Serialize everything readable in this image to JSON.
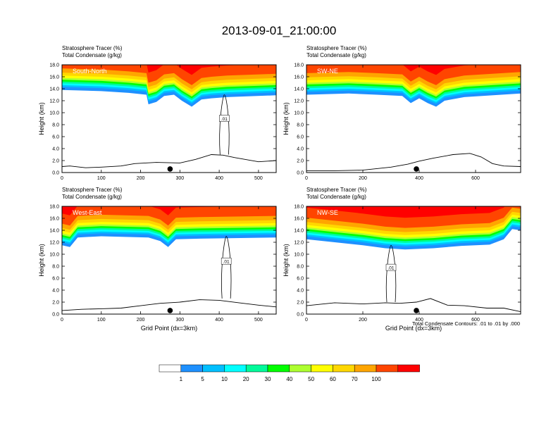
{
  "figure_title": "2013-09-01_21:00:00",
  "contour_info": "Total Condensate Contours: .01 to .01 by .000",
  "chart_data": [
    {
      "type": "heatmap",
      "panel_label": "South-North",
      "left_titles": [
        "Stratosphere Tracer   (%)",
        "Total Condensate   (g/kg)"
      ],
      "ylabel": "Height (km)",
      "xlabel": "",
      "xlim": [
        0,
        545
      ],
      "ylim": [
        0,
        18
      ],
      "x_ticks": [
        0,
        100,
        200,
        300,
        400,
        500
      ],
      "y_ticks": [
        "0.0",
        "2.0",
        "4.0",
        "6.0",
        "8.0",
        "10.0",
        "12.0",
        "14.0",
        "16.0",
        "18.0"
      ],
      "marker_x": 275,
      "contour_label": ".01",
      "tracer_bottom": [
        [
          0,
          13.8
        ],
        [
          100,
          13.6
        ],
        [
          170,
          13.3
        ],
        [
          215,
          13.0
        ],
        [
          220,
          11.4
        ],
        [
          240,
          11.8
        ],
        [
          260,
          12.8
        ],
        [
          285,
          13.0
        ],
        [
          305,
          12.0
        ],
        [
          330,
          11.0
        ],
        [
          355,
          12.2
        ],
        [
          380,
          12.4
        ],
        [
          420,
          12.6
        ],
        [
          545,
          12.9
        ]
      ],
      "terrain": [
        [
          0,
          1.0
        ],
        [
          20,
          1.1
        ],
        [
          60,
          0.8
        ],
        [
          100,
          0.9
        ],
        [
          150,
          1.1
        ],
        [
          185,
          1.5
        ],
        [
          240,
          1.7
        ],
        [
          300,
          1.6
        ],
        [
          340,
          2.2
        ],
        [
          380,
          3.0
        ],
        [
          410,
          2.9
        ],
        [
          440,
          2.5
        ],
        [
          500,
          1.8
        ],
        [
          545,
          2.0
        ]
      ]
    },
    {
      "type": "heatmap",
      "panel_label": "SW-NE",
      "left_titles": [
        "Stratosphere Tracer   (%)",
        "Total Condensate   (g/kg)"
      ],
      "ylabel": "Height (km)",
      "xlabel": "",
      "xlim": [
        0,
        760
      ],
      "ylim": [
        0,
        18
      ],
      "x_ticks": [
        0,
        200,
        400,
        600
      ],
      "y_ticks": [
        "0.0",
        "2.0",
        "4.0",
        "6.0",
        "8.0",
        "10.0",
        "12.0",
        "14.0",
        "16.0",
        "18.0"
      ],
      "marker_x": 390,
      "contour_label": "",
      "tracer_bottom": [
        [
          0,
          13.0
        ],
        [
          150,
          13.2
        ],
        [
          250,
          13.0
        ],
        [
          340,
          12.8
        ],
        [
          370,
          11.6
        ],
        [
          400,
          12.4
        ],
        [
          430,
          11.6
        ],
        [
          460,
          11.0
        ],
        [
          490,
          12.0
        ],
        [
          560,
          12.6
        ],
        [
          760,
          13.2
        ]
      ],
      "terrain": [
        [
          0,
          0.3
        ],
        [
          100,
          0.3
        ],
        [
          200,
          0.4
        ],
        [
          300,
          0.9
        ],
        [
          360,
          1.4
        ],
        [
          400,
          1.9
        ],
        [
          450,
          2.4
        ],
        [
          520,
          3.0
        ],
        [
          580,
          3.2
        ],
        [
          620,
          2.6
        ],
        [
          660,
          1.5
        ],
        [
          700,
          1.1
        ],
        [
          760,
          1.0
        ]
      ]
    },
    {
      "type": "heatmap",
      "panel_label": "West-East",
      "left_titles": [
        "Stratosphere Tracer   (%)",
        "Total Condensate   (g/kg)"
      ],
      "ylabel": "Height (km)",
      "xlabel": "Grid Point (dx=3km)",
      "xlim": [
        0,
        545
      ],
      "ylim": [
        0,
        18
      ],
      "x_ticks": [
        0,
        100,
        200,
        300,
        400,
        500
      ],
      "y_ticks": [
        "0.0",
        "2.0",
        "4.0",
        "6.0",
        "8.0",
        "10.0",
        "12.0",
        "14.0",
        "16.0",
        "18.0"
      ],
      "marker_x": 275,
      "contour_label": ".01",
      "tracer_bottom": [
        [
          0,
          11.5
        ],
        [
          20,
          11.2
        ],
        [
          40,
          12.8
        ],
        [
          100,
          13.0
        ],
        [
          220,
          12.8
        ],
        [
          250,
          12.2
        ],
        [
          270,
          11.2
        ],
        [
          290,
          12.5
        ],
        [
          350,
          12.6
        ],
        [
          545,
          12.8
        ]
      ],
      "terrain": [
        [
          0,
          0.6
        ],
        [
          50,
          0.8
        ],
        [
          100,
          0.9
        ],
        [
          150,
          1.0
        ],
        [
          200,
          1.4
        ],
        [
          250,
          1.8
        ],
        [
          300,
          2.0
        ],
        [
          350,
          2.4
        ],
        [
          400,
          2.3
        ],
        [
          450,
          1.9
        ],
        [
          500,
          1.5
        ],
        [
          545,
          1.2
        ]
      ]
    },
    {
      "type": "heatmap",
      "panel_label": "NW-SE",
      "left_titles": [
        "Stratosphere Tracer   (%)",
        "Total Condensate   (g/kg)"
      ],
      "ylabel": "Height (km)",
      "xlabel": "Grid Point (dx=3km)",
      "xlim": [
        0,
        760
      ],
      "ylim": [
        0,
        18
      ],
      "x_ticks": [
        0,
        200,
        400,
        600
      ],
      "y_ticks": [
        "0.0",
        "2.0",
        "4.0",
        "6.0",
        "8.0",
        "10.0",
        "12.0",
        "14.0",
        "16.0",
        "18.0"
      ],
      "marker_x": 390,
      "contour_label": ".01",
      "tracer_bottom": [
        [
          0,
          12.5
        ],
        [
          100,
          12.0
        ],
        [
          200,
          11.5
        ],
        [
          280,
          11.0
        ],
        [
          350,
          10.8
        ],
        [
          450,
          11.0
        ],
        [
          550,
          11.4
        ],
        [
          650,
          11.6
        ],
        [
          700,
          12.5
        ],
        [
          730,
          14.2
        ],
        [
          760,
          14.0
        ]
      ],
      "terrain": [
        [
          0,
          1.4
        ],
        [
          100,
          1.9
        ],
        [
          200,
          1.7
        ],
        [
          280,
          1.9
        ],
        [
          330,
          1.8
        ],
        [
          390,
          2.0
        ],
        [
          440,
          2.6
        ],
        [
          500,
          1.5
        ],
        [
          560,
          1.4
        ],
        [
          640,
          1.0
        ],
        [
          700,
          1.0
        ],
        [
          760,
          0.4
        ]
      ]
    }
  ],
  "colorbar": {
    "labels": [
      "1",
      "5",
      "10",
      "20",
      "30",
      "40",
      "50",
      "60",
      "70",
      "100"
    ],
    "colors": [
      "#ffffff",
      "#1e90ff",
      "#00bfff",
      "#00ffff",
      "#00fa9a",
      "#00ff00",
      "#adff2f",
      "#ffff00",
      "#ffd700",
      "#ffa500",
      "#ff4500",
      "#ff0000"
    ]
  }
}
